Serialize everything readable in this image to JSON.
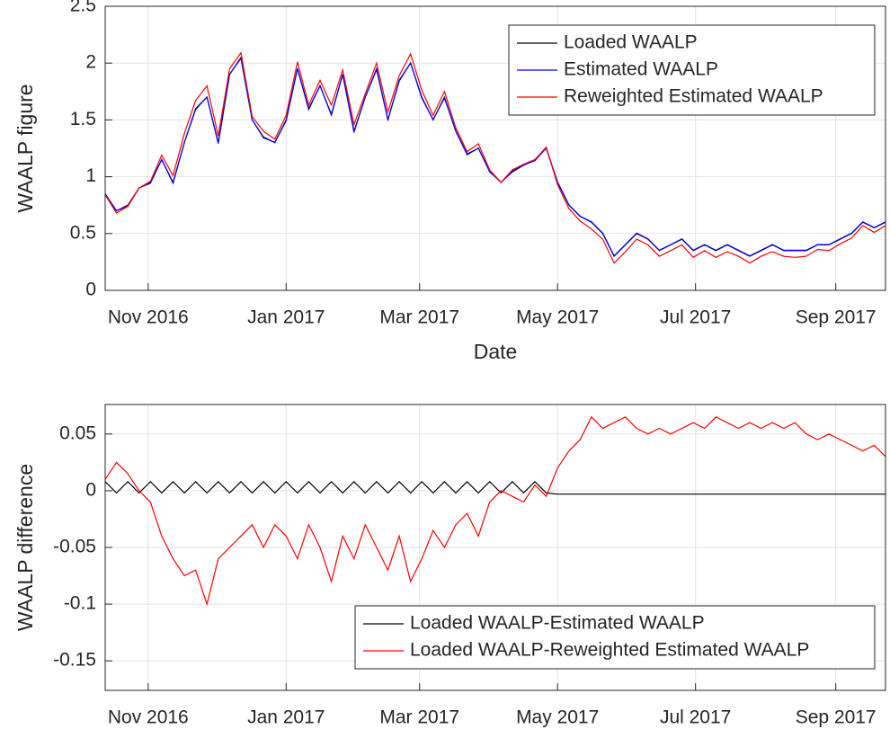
{
  "chart_data": [
    {
      "type": "line",
      "x_label": "Date",
      "y_label": "WAALP figure",
      "xlim": [
        -19,
        326
      ],
      "xticks": [
        {
          "value": 0,
          "label": "Nov 2016"
        },
        {
          "value": 61,
          "label": "Jan 2017"
        },
        {
          "value": 120,
          "label": "Mar 2017"
        },
        {
          "value": 181,
          "label": "May 2017"
        },
        {
          "value": 242,
          "label": "Jul 2017"
        },
        {
          "value": 304,
          "label": "Sep 2017"
        }
      ],
      "ylim": [
        0,
        2.5
      ],
      "yticks": [
        0,
        0.5,
        1,
        1.5,
        2,
        2.5
      ],
      "grid": true,
      "legend": "top-right",
      "x": [
        -19,
        -14,
        -9,
        -4,
        1,
        6,
        11,
        16,
        21,
        26,
        31,
        36,
        41,
        46,
        51,
        56,
        61,
        66,
        71,
        76,
        81,
        86,
        91,
        96,
        101,
        106,
        111,
        116,
        121,
        126,
        131,
        136,
        141,
        146,
        151,
        156,
        161,
        166,
        171,
        176,
        181,
        186,
        191,
        196,
        201,
        206,
        211,
        216,
        221,
        226,
        231,
        236,
        241,
        246,
        251,
        256,
        261,
        266,
        271,
        276,
        281,
        286,
        291,
        296,
        301,
        306,
        311,
        316,
        321,
        326
      ],
      "series": [
        {
          "name": "Loaded WAALP",
          "color": "#000000",
          "values": [
            0.85,
            0.7,
            0.75,
            0.9,
            0.95,
            1.15,
            0.95,
            1.3,
            1.6,
            1.7,
            1.3,
            1.9,
            2.05,
            1.5,
            1.35,
            1.3,
            1.5,
            1.95,
            1.6,
            1.8,
            1.55,
            1.9,
            1.4,
            1.7,
            1.95,
            1.5,
            1.85,
            2.0,
            1.7,
            1.5,
            1.7,
            1.4,
            1.2,
            1.25,
            1.05,
            0.95,
            1.05,
            1.1,
            1.15,
            1.25,
            0.95,
            0.75,
            0.65,
            0.6,
            0.5,
            0.3,
            0.4,
            0.5,
            0.45,
            0.35,
            0.4,
            0.45,
            0.35,
            0.4,
            0.35,
            0.4,
            0.35,
            0.3,
            0.35,
            0.4,
            0.35,
            0.35,
            0.35,
            0.4,
            0.4,
            0.45,
            0.5,
            0.6,
            0.55,
            0.6
          ]
        },
        {
          "name": "Estimated WAALP",
          "color": "#0000ff",
          "values": [
            0.842,
            0.702,
            0.742,
            0.902,
            0.942,
            1.152,
            0.942,
            1.302,
            1.592,
            1.702,
            1.292,
            1.902,
            2.042,
            1.502,
            1.342,
            1.302,
            1.492,
            1.952,
            1.592,
            1.802,
            1.542,
            1.902,
            1.392,
            1.702,
            1.942,
            1.502,
            1.842,
            2.002,
            1.692,
            1.502,
            1.692,
            1.402,
            1.192,
            1.252,
            1.042,
            0.952,
            1.042,
            1.102,
            1.142,
            1.252,
            0.953,
            0.753,
            0.653,
            0.603,
            0.503,
            0.303,
            0.403,
            0.503,
            0.453,
            0.353,
            0.403,
            0.453,
            0.353,
            0.403,
            0.353,
            0.403,
            0.353,
            0.303,
            0.353,
            0.403,
            0.353,
            0.353,
            0.353,
            0.403,
            0.403,
            0.453,
            0.503,
            0.603,
            0.553,
            0.603
          ]
        },
        {
          "name": "Reweighted Estimated WAALP",
          "color": "#ff0000",
          "values": [
            0.84,
            0.68,
            0.74,
            0.9,
            0.96,
            1.19,
            1.01,
            1.38,
            1.67,
            1.8,
            1.36,
            1.95,
            2.09,
            1.53,
            1.4,
            1.33,
            1.54,
            2.01,
            1.63,
            1.85,
            1.63,
            1.94,
            1.46,
            1.73,
            2.0,
            1.57,
            1.89,
            2.08,
            1.76,
            1.54,
            1.75,
            1.43,
            1.22,
            1.29,
            1.06,
            0.95,
            1.06,
            1.11,
            1.15,
            1.26,
            0.93,
            0.72,
            0.61,
            0.54,
            0.45,
            0.24,
            0.34,
            0.45,
            0.4,
            0.3,
            0.35,
            0.4,
            0.29,
            0.35,
            0.29,
            0.34,
            0.3,
            0.24,
            0.3,
            0.34,
            0.3,
            0.29,
            0.3,
            0.36,
            0.35,
            0.41,
            0.46,
            0.57,
            0.51,
            0.57
          ]
        }
      ]
    },
    {
      "type": "line",
      "y_label": "WAALP difference",
      "xlim": [
        -19,
        326
      ],
      "xticks": [
        {
          "value": 0,
          "label": "Nov 2016"
        },
        {
          "value": 61,
          "label": "Jan 2017"
        },
        {
          "value": 120,
          "label": "Mar 2017"
        },
        {
          "value": 181,
          "label": "May 2017"
        },
        {
          "value": 242,
          "label": "Jul 2017"
        },
        {
          "value": 304,
          "label": "Sep 2017"
        }
      ],
      "ylim": [
        -0.176,
        0.076
      ],
      "yticks": [
        -0.15,
        -0.1,
        -0.05,
        0,
        0.05
      ],
      "grid": true,
      "legend": "bottom-right",
      "x": [
        -19,
        -14,
        -9,
        -4,
        1,
        6,
        11,
        16,
        21,
        26,
        31,
        36,
        41,
        46,
        51,
        56,
        61,
        66,
        71,
        76,
        81,
        86,
        91,
        96,
        101,
        106,
        111,
        116,
        121,
        126,
        131,
        136,
        141,
        146,
        151,
        156,
        161,
        166,
        171,
        176,
        181,
        186,
        191,
        196,
        201,
        206,
        211,
        216,
        221,
        226,
        231,
        236,
        241,
        246,
        251,
        256,
        261,
        266,
        271,
        276,
        281,
        286,
        291,
        296,
        301,
        306,
        311,
        316,
        321,
        326
      ],
      "series": [
        {
          "name": "Loaded WAALP-Estimated WAALP",
          "color": "#000000",
          "values": [
            0.008,
            -0.002,
            0.008,
            -0.002,
            0.008,
            -0.002,
            0.008,
            -0.002,
            0.008,
            -0.002,
            0.008,
            -0.002,
            0.008,
            -0.002,
            0.008,
            -0.002,
            0.008,
            -0.002,
            0.008,
            -0.002,
            0.008,
            -0.002,
            0.008,
            -0.002,
            0.008,
            -0.002,
            0.008,
            -0.002,
            0.008,
            -0.002,
            0.008,
            -0.002,
            0.008,
            -0.002,
            0.008,
            -0.002,
            0.008,
            -0.002,
            0.008,
            -0.002,
            -0.003,
            -0.003,
            -0.003,
            -0.003,
            -0.003,
            -0.003,
            -0.003,
            -0.003,
            -0.003,
            -0.003,
            -0.003,
            -0.003,
            -0.003,
            -0.003,
            -0.003,
            -0.003,
            -0.003,
            -0.003,
            -0.003,
            -0.003,
            -0.003,
            -0.003,
            -0.003,
            -0.003,
            -0.003,
            -0.003,
            -0.003,
            -0.003,
            -0.003,
            -0.003
          ]
        },
        {
          "name": "Loaded WAALP-Reweighted Estimated WAALP",
          "color": "#ff0000",
          "values": [
            0.01,
            0.025,
            0.015,
            0.0,
            -0.01,
            -0.04,
            -0.06,
            -0.075,
            -0.07,
            -0.1,
            -0.06,
            -0.05,
            -0.04,
            -0.03,
            -0.05,
            -0.03,
            -0.04,
            -0.06,
            -0.03,
            -0.05,
            -0.08,
            -0.04,
            -0.06,
            -0.03,
            -0.05,
            -0.07,
            -0.04,
            -0.08,
            -0.06,
            -0.035,
            -0.05,
            -0.03,
            -0.02,
            -0.04,
            -0.01,
            0.0,
            -0.005,
            -0.01,
            0.005,
            -0.005,
            0.02,
            0.035,
            0.045,
            0.065,
            0.055,
            0.06,
            0.065,
            0.055,
            0.05,
            0.055,
            0.05,
            0.055,
            0.06,
            0.055,
            0.065,
            0.06,
            0.055,
            0.06,
            0.055,
            0.06,
            0.055,
            0.06,
            0.05,
            0.045,
            0.05,
            0.045,
            0.04,
            0.035,
            0.04,
            0.03
          ]
        }
      ]
    }
  ]
}
